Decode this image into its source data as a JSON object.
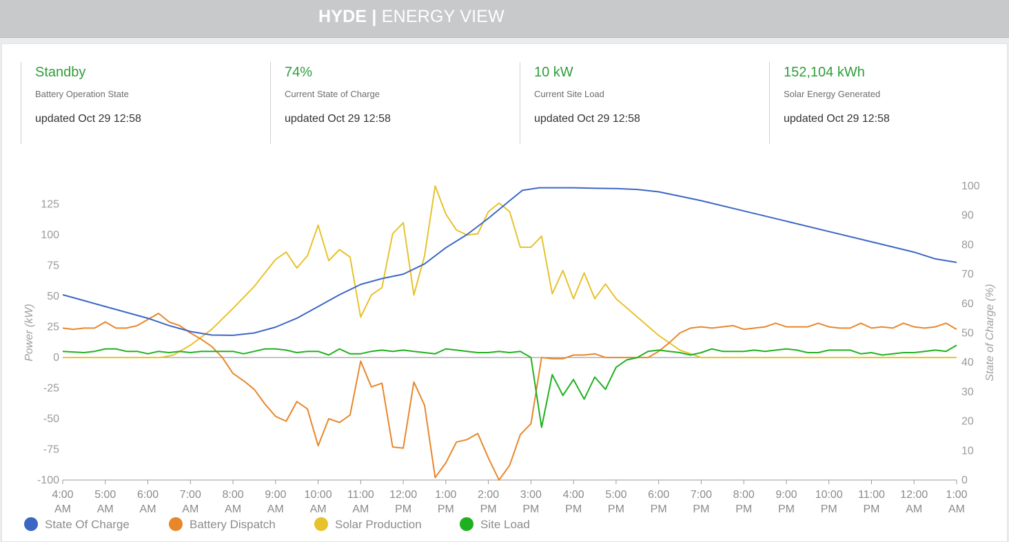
{
  "header": {
    "brand_bold": "HYDE |",
    "brand_light": "ENERGY VIEW"
  },
  "kpis": [
    {
      "value": "Standby",
      "label": "Battery Operation State",
      "updated": "updated Oct 29 12:58"
    },
    {
      "value": "74%",
      "label": "Current State of Charge",
      "updated": "updated Oct 29 12:58"
    },
    {
      "value": "10 kW",
      "label": "Current Site Load",
      "updated": "updated Oct 29 12:58"
    },
    {
      "value": "152,104 kWh",
      "label": "Solar Energy Generated",
      "updated": "updated Oct 29 12:58"
    }
  ],
  "chart_data": {
    "type": "line",
    "ylabel": "Power (kW)",
    "y2label": "State of Charge (%)",
    "ylim": [
      -100,
      140
    ],
    "y2lim": [
      0,
      100
    ],
    "yticks": [
      -100,
      -75,
      -50,
      -25,
      0,
      25,
      50,
      75,
      100,
      125
    ],
    "y2ticks": [
      0,
      10,
      20,
      30,
      40,
      50,
      60,
      70,
      80,
      90,
      100
    ],
    "x_ticks": [
      [
        "4:00",
        "AM"
      ],
      [
        "5:00",
        "AM"
      ],
      [
        "6:00",
        "AM"
      ],
      [
        "7:00",
        "AM"
      ],
      [
        "8:00",
        "AM"
      ],
      [
        "9:00",
        "AM"
      ],
      [
        "10:00",
        "AM"
      ],
      [
        "11:00",
        "AM"
      ],
      [
        "12:00",
        "PM"
      ],
      [
        "1:00",
        "PM"
      ],
      [
        "2:00",
        "PM"
      ],
      [
        "3:00",
        "PM"
      ],
      [
        "4:00",
        "PM"
      ],
      [
        "5:00",
        "PM"
      ],
      [
        "6:00",
        "PM"
      ],
      [
        "7:00",
        "PM"
      ],
      [
        "8:00",
        "PM"
      ],
      [
        "9:00",
        "PM"
      ],
      [
        "10:00",
        "PM"
      ],
      [
        "11:00",
        "PM"
      ],
      [
        "12:00",
        "AM"
      ],
      [
        "1:00",
        "AM"
      ]
    ],
    "x_range_hours": [
      0,
      21
    ],
    "grid": false,
    "legend_position": "bottom-left",
    "series": [
      {
        "name": "State Of Charge",
        "color": "#3b66c4",
        "axis": "right",
        "points": [
          [
            0,
            63
          ],
          [
            0.5,
            61
          ],
          [
            1,
            59
          ],
          [
            1.5,
            57
          ],
          [
            2,
            55
          ],
          [
            2.5,
            52.5
          ],
          [
            3,
            50.5
          ],
          [
            3.5,
            49.3
          ],
          [
            4,
            49.2
          ],
          [
            4.5,
            50
          ],
          [
            5,
            52
          ],
          [
            5.5,
            55
          ],
          [
            6,
            59
          ],
          [
            6.5,
            63
          ],
          [
            7,
            66.5
          ],
          [
            7.5,
            68.5
          ],
          [
            8,
            70
          ],
          [
            8.5,
            73.5
          ],
          [
            9,
            79
          ],
          [
            9.5,
            83.5
          ],
          [
            10,
            89
          ],
          [
            10.5,
            95
          ],
          [
            10.8,
            98.5
          ],
          [
            11.2,
            99.4
          ],
          [
            12,
            99.4
          ],
          [
            12.5,
            99.2
          ],
          [
            13,
            99.1
          ],
          [
            13.5,
            98.8
          ],
          [
            14,
            98
          ],
          [
            14.5,
            96.5
          ],
          [
            15,
            95
          ],
          [
            16,
            91.5
          ],
          [
            17,
            88
          ],
          [
            18,
            84.5
          ],
          [
            19,
            81
          ],
          [
            20,
            77.5
          ],
          [
            20.5,
            75.2
          ],
          [
            21,
            74
          ]
        ]
      },
      {
        "name": "Battery Dispatch",
        "color": "#e8862a",
        "axis": "left",
        "points": [
          [
            0,
            24
          ],
          [
            0.25,
            23
          ],
          [
            0.5,
            24
          ],
          [
            0.75,
            24
          ],
          [
            1,
            29
          ],
          [
            1.25,
            24
          ],
          [
            1.5,
            24
          ],
          [
            1.75,
            26
          ],
          [
            2,
            31
          ],
          [
            2.25,
            36
          ],
          [
            2.5,
            29
          ],
          [
            2.75,
            26
          ],
          [
            3,
            20
          ],
          [
            3.25,
            15
          ],
          [
            3.5,
            9
          ],
          [
            3.75,
            0
          ],
          [
            4,
            -13
          ],
          [
            4.25,
            -19
          ],
          [
            4.5,
            -26
          ],
          [
            4.75,
            -38
          ],
          [
            5,
            -48
          ],
          [
            5.25,
            -52
          ],
          [
            5.5,
            -36
          ],
          [
            5.75,
            -42
          ],
          [
            6,
            -72
          ],
          [
            6.25,
            -50
          ],
          [
            6.5,
            -53
          ],
          [
            6.75,
            -47
          ],
          [
            7,
            -3
          ],
          [
            7.25,
            -24
          ],
          [
            7.5,
            -21
          ],
          [
            7.75,
            -73
          ],
          [
            8,
            -74
          ],
          [
            8.25,
            -20
          ],
          [
            8.5,
            -39
          ],
          [
            8.75,
            -98
          ],
          [
            9,
            -86
          ],
          [
            9.25,
            -69
          ],
          [
            9.5,
            -67
          ],
          [
            9.75,
            -62
          ],
          [
            10,
            -82
          ],
          [
            10.25,
            -100
          ],
          [
            10.5,
            -88
          ],
          [
            10.75,
            -63
          ],
          [
            11,
            -54
          ],
          [
            11.25,
            0
          ],
          [
            11.5,
            -1
          ],
          [
            11.75,
            -1
          ],
          [
            12,
            2
          ],
          [
            12.25,
            2
          ],
          [
            12.5,
            3
          ],
          [
            12.75,
            0
          ],
          [
            13,
            0
          ],
          [
            13.25,
            0
          ],
          [
            13.5,
            0
          ],
          [
            13.75,
            0
          ],
          [
            14,
            5
          ],
          [
            14.25,
            12
          ],
          [
            14.5,
            20
          ],
          [
            14.75,
            24
          ],
          [
            15,
            25
          ],
          [
            15.25,
            24
          ],
          [
            15.5,
            25
          ],
          [
            15.75,
            26
          ],
          [
            16,
            23
          ],
          [
            16.25,
            24
          ],
          [
            16.5,
            25
          ],
          [
            16.75,
            28
          ],
          [
            17,
            25
          ],
          [
            17.25,
            25
          ],
          [
            17.5,
            25
          ],
          [
            17.75,
            28
          ],
          [
            18,
            25
          ],
          [
            18.25,
            24
          ],
          [
            18.5,
            24
          ],
          [
            18.75,
            28
          ],
          [
            19,
            24
          ],
          [
            19.25,
            25
          ],
          [
            19.5,
            24
          ],
          [
            19.75,
            28
          ],
          [
            20,
            25
          ],
          [
            20.25,
            24
          ],
          [
            20.5,
            25
          ],
          [
            20.75,
            28
          ],
          [
            21,
            23
          ]
        ]
      },
      {
        "name": "Solar Production",
        "color": "#e6c22b",
        "axis": "left",
        "points": [
          [
            0,
            0
          ],
          [
            1,
            0
          ],
          [
            2,
            0
          ],
          [
            2.3,
            0
          ],
          [
            2.6,
            2
          ],
          [
            3,
            10
          ],
          [
            3.5,
            23
          ],
          [
            4,
            40
          ],
          [
            4.5,
            58
          ],
          [
            5,
            80
          ],
          [
            5.25,
            86
          ],
          [
            5.5,
            73
          ],
          [
            5.75,
            83
          ],
          [
            6,
            108
          ],
          [
            6.25,
            79
          ],
          [
            6.5,
            88
          ],
          [
            6.75,
            82
          ],
          [
            7,
            33
          ],
          [
            7.25,
            51
          ],
          [
            7.5,
            57
          ],
          [
            7.75,
            101
          ],
          [
            8,
            110
          ],
          [
            8.25,
            51
          ],
          [
            8.5,
            83
          ],
          [
            8.75,
            140
          ],
          [
            9,
            117
          ],
          [
            9.25,
            104
          ],
          [
            9.5,
            100
          ],
          [
            9.75,
            101
          ],
          [
            10,
            119
          ],
          [
            10.25,
            126
          ],
          [
            10.5,
            119
          ],
          [
            10.75,
            90
          ],
          [
            11,
            90
          ],
          [
            11.25,
            99
          ],
          [
            11.5,
            52
          ],
          [
            11.75,
            71
          ],
          [
            12,
            48
          ],
          [
            12.25,
            69
          ],
          [
            12.5,
            48
          ],
          [
            12.75,
            60
          ],
          [
            13,
            48
          ],
          [
            13.5,
            33
          ],
          [
            14,
            18
          ],
          [
            14.5,
            6
          ],
          [
            15,
            0
          ],
          [
            16,
            0
          ],
          [
            18,
            0
          ],
          [
            21,
            0
          ]
        ]
      },
      {
        "name": "Site Load",
        "color": "#1fb01f",
        "axis": "left",
        "points": [
          [
            0,
            5
          ],
          [
            0.5,
            4
          ],
          [
            0.75,
            5
          ],
          [
            1,
            7
          ],
          [
            1.25,
            7
          ],
          [
            1.5,
            5
          ],
          [
            1.75,
            5
          ],
          [
            2,
            3
          ],
          [
            2.25,
            5
          ],
          [
            2.5,
            4
          ],
          [
            2.75,
            5
          ],
          [
            3,
            4
          ],
          [
            3.25,
            5
          ],
          [
            3.5,
            5
          ],
          [
            3.75,
            5
          ],
          [
            4,
            5
          ],
          [
            4.25,
            3
          ],
          [
            4.5,
            5
          ],
          [
            4.75,
            7
          ],
          [
            5,
            7
          ],
          [
            5.25,
            6
          ],
          [
            5.5,
            4
          ],
          [
            5.75,
            5
          ],
          [
            6,
            5
          ],
          [
            6.25,
            2
          ],
          [
            6.5,
            7
          ],
          [
            6.75,
            3
          ],
          [
            7,
            3
          ],
          [
            7.25,
            5
          ],
          [
            7.5,
            6
          ],
          [
            7.75,
            5
          ],
          [
            8,
            6
          ],
          [
            8.25,
            5
          ],
          [
            8.5,
            4
          ],
          [
            8.75,
            3
          ],
          [
            9,
            7
          ],
          [
            9.25,
            6
          ],
          [
            9.5,
            5
          ],
          [
            9.75,
            4
          ],
          [
            10,
            4
          ],
          [
            10.25,
            5
          ],
          [
            10.5,
            4
          ],
          [
            10.75,
            5
          ],
          [
            11,
            0
          ],
          [
            11.25,
            -57
          ],
          [
            11.5,
            -14
          ],
          [
            11.75,
            -31
          ],
          [
            12,
            -18
          ],
          [
            12.25,
            -34
          ],
          [
            12.5,
            -16
          ],
          [
            12.75,
            -26
          ],
          [
            13,
            -8
          ],
          [
            13.25,
            -2
          ],
          [
            13.5,
            0
          ],
          [
            13.75,
            5
          ],
          [
            14,
            6
          ],
          [
            14.25,
            5
          ],
          [
            14.5,
            4
          ],
          [
            14.75,
            2
          ],
          [
            15,
            4
          ],
          [
            15.25,
            7
          ],
          [
            15.5,
            5
          ],
          [
            15.75,
            5
          ],
          [
            16,
            5
          ],
          [
            16.25,
            6
          ],
          [
            16.5,
            5
          ],
          [
            16.75,
            6
          ],
          [
            17,
            7
          ],
          [
            17.25,
            6
          ],
          [
            17.5,
            4
          ],
          [
            17.75,
            4
          ],
          [
            18,
            6
          ],
          [
            18.25,
            6
          ],
          [
            18.5,
            6
          ],
          [
            18.75,
            3
          ],
          [
            19,
            4
          ],
          [
            19.25,
            2
          ],
          [
            19.5,
            3
          ],
          [
            19.75,
            4
          ],
          [
            20,
            4
          ],
          [
            20.25,
            5
          ],
          [
            20.5,
            6
          ],
          [
            20.75,
            5
          ],
          [
            21,
            10
          ]
        ]
      }
    ]
  }
}
